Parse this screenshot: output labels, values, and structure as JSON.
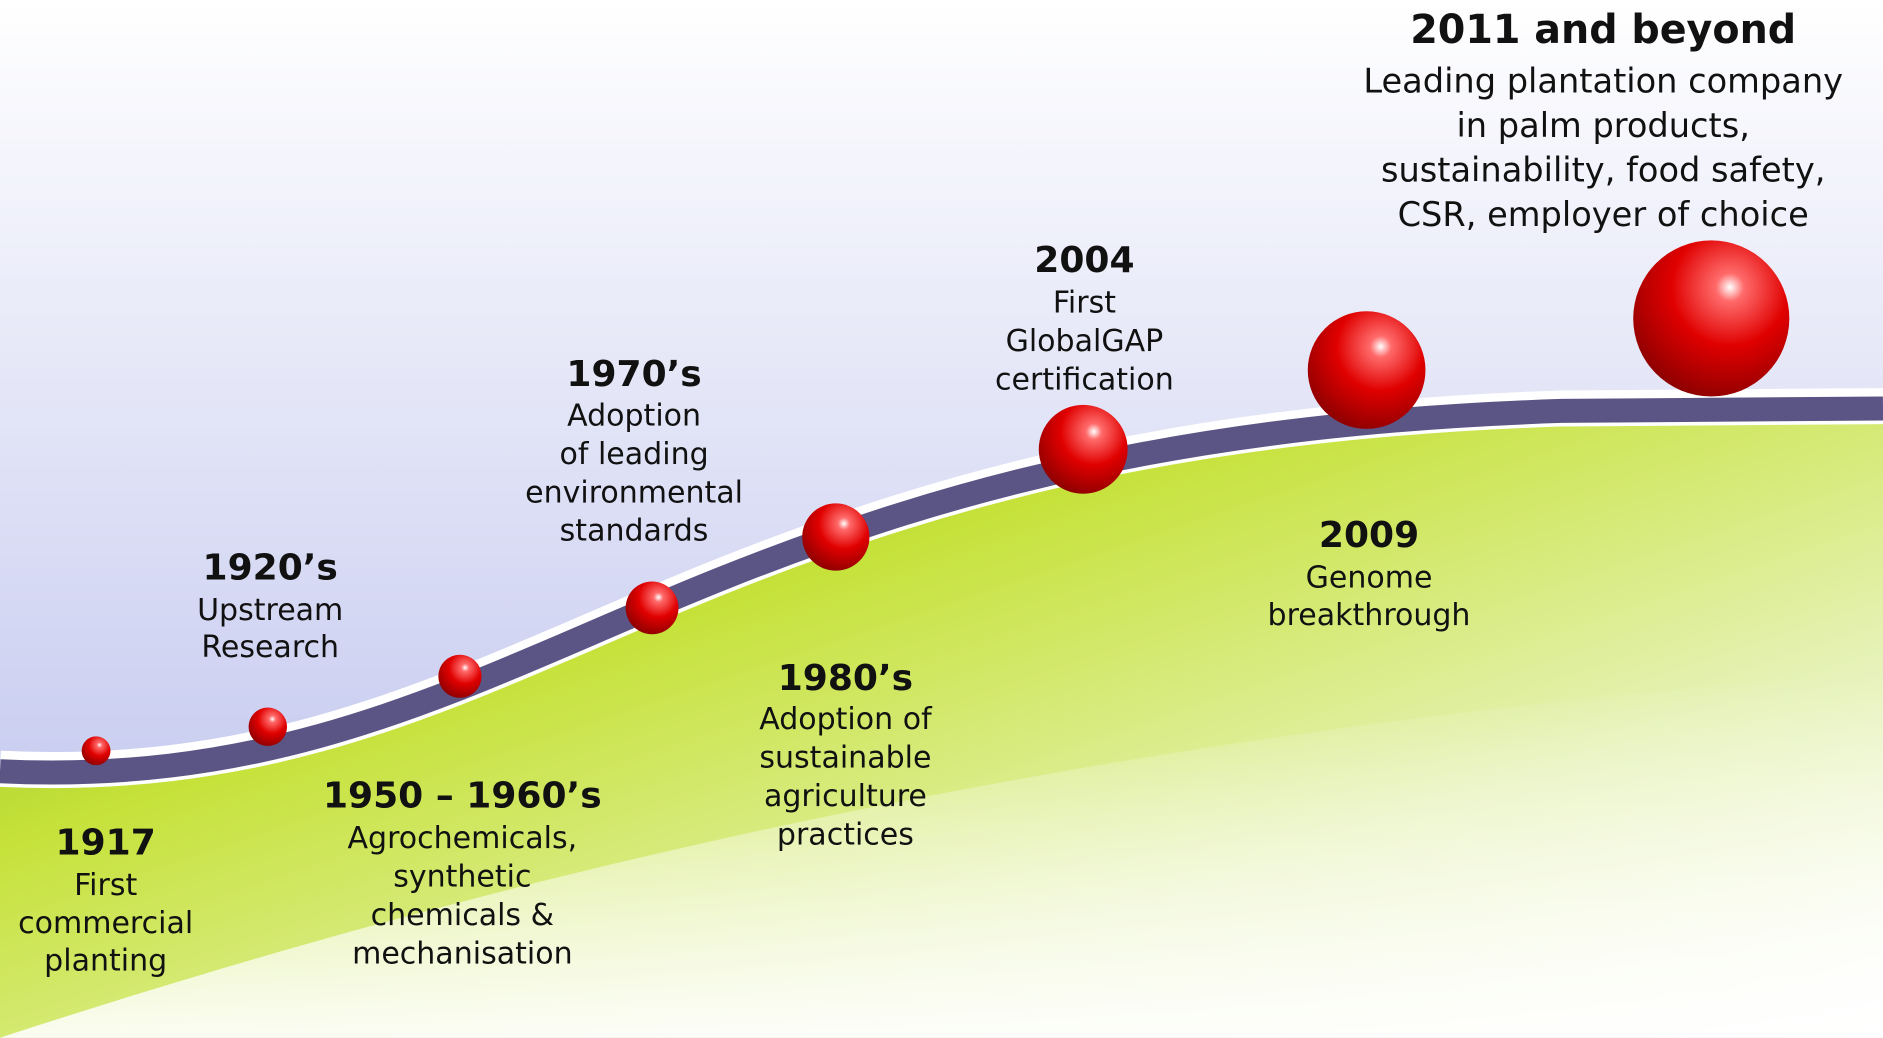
{
  "milestones": [
    {
      "year": "1917",
      "lines": [
        "First",
        "commercial",
        "planting"
      ]
    },
    {
      "year": "1920’s",
      "lines": [
        "Upstream",
        "Research"
      ]
    },
    {
      "year": "1950 – 1960’s",
      "lines": [
        "Agrochemicals,",
        "synthetic",
        "chemicals &",
        "mechanisation"
      ]
    },
    {
      "year": "1970’s",
      "lines": [
        "Adoption",
        "of leading",
        "environmental",
        "standards"
      ]
    },
    {
      "year": "1980’s",
      "lines": [
        "Adoption of",
        "sustainable",
        "agriculture",
        "practices"
      ]
    },
    {
      "year": "2004",
      "lines": [
        "First",
        "GlobalGAP",
        "certification"
      ]
    },
    {
      "year": "2009",
      "lines": [
        "Genome",
        "breakthrough"
      ]
    },
    {
      "year": "2011 and beyond",
      "lines": [
        "Leading plantation company",
        "in palm products,",
        "sustainability, food safety,",
        "CSR, employer of choice"
      ]
    }
  ]
}
